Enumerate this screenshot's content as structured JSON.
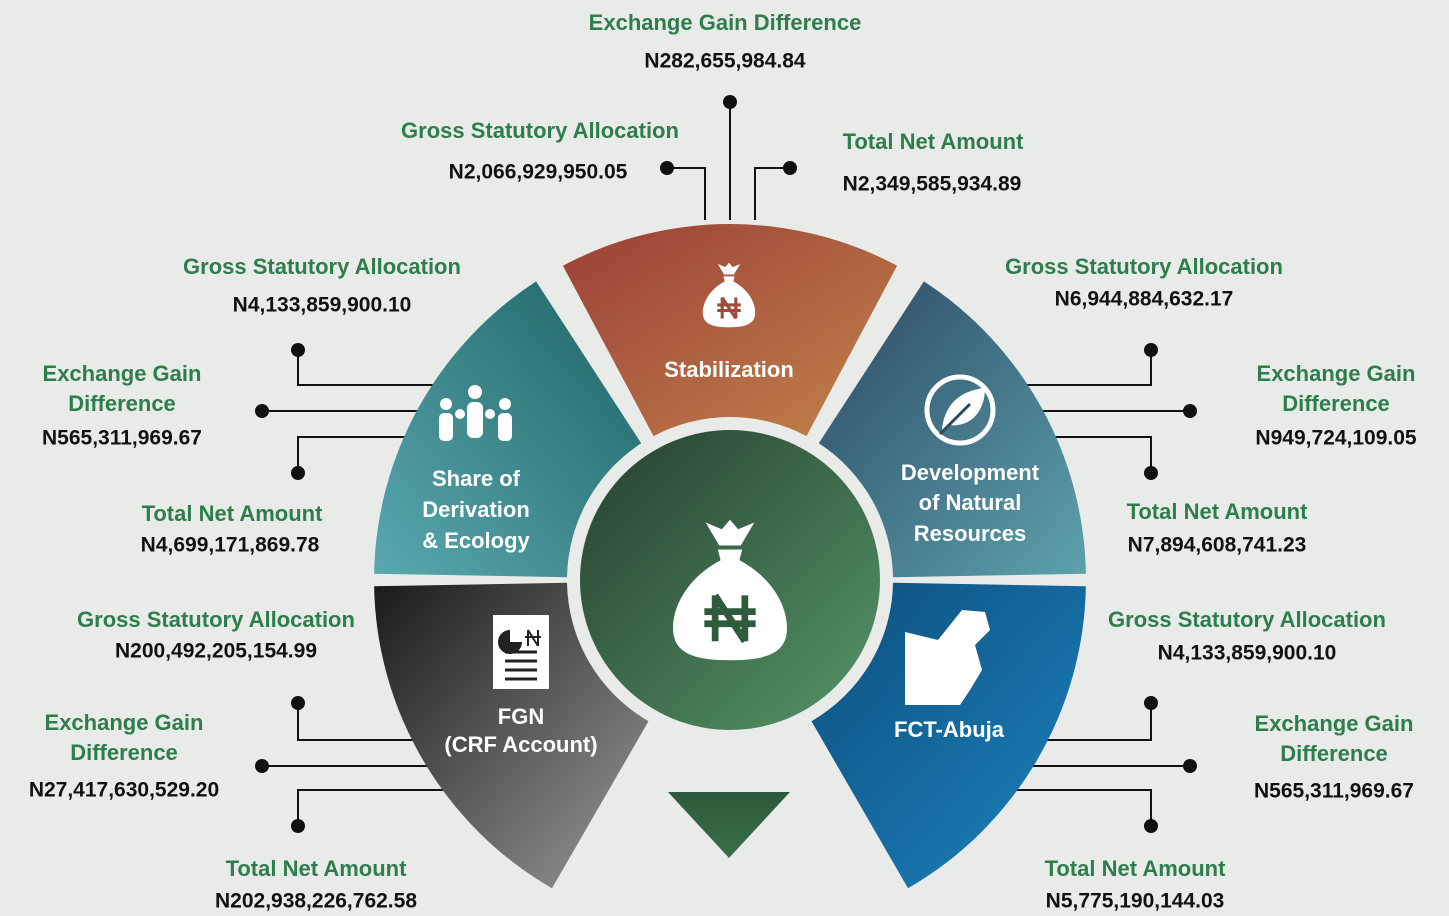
{
  "segments": [
    {
      "name": "Stabilization",
      "items": [
        {
          "label": "Exchange Gain Difference",
          "value": "N282,655,984.84"
        },
        {
          "label": "Gross Statutory Allocation",
          "value": "N2,066,929,950.05"
        },
        {
          "label": "Total Net Amount",
          "value": "N2,349,585,934.89"
        }
      ]
    },
    {
      "name": [
        "Share of",
        "Derivation",
        "& Ecology"
      ],
      "items": [
        {
          "label": "Gross Statutory Allocation",
          "value": "N4,133,859,900.10"
        },
        {
          "label": [
            "Exchange Gain",
            "Difference"
          ],
          "value": "N565,311,969.67"
        },
        {
          "label": "Total Net Amount",
          "value": "N4,699,171,869.78"
        }
      ]
    },
    {
      "name": [
        "Development",
        "of Natural",
        "Resources"
      ],
      "items": [
        {
          "label": "Gross Statutory Allocation",
          "value": "N6,944,884,632.17"
        },
        {
          "label": [
            "Exchange Gain",
            "Difference"
          ],
          "value": "N949,724,109.05"
        },
        {
          "label": "Total Net Amount",
          "value": "N7,894,608,741.23"
        }
      ]
    },
    {
      "name": [
        "FGN",
        "(CRF Account)"
      ],
      "items": [
        {
          "label": "Gross Statutory Allocation",
          "value": "N200,492,205,154.99"
        },
        {
          "label": [
            "Exchange Gain",
            "Difference"
          ],
          "value": "N27,417,630,529.20"
        },
        {
          "label": "Total Net Amount",
          "value": "N202,938,226,762.58"
        }
      ]
    },
    {
      "name": "FCT-Abuja",
      "items": [
        {
          "label": "Gross Statutory Allocation",
          "value": "N4,133,859,900.10"
        },
        {
          "label": [
            "Exchange Gain",
            "Difference"
          ],
          "value": "N565,311,969.67"
        },
        {
          "label": "Total Net Amount",
          "value": "N5,775,190,144.03"
        }
      ]
    }
  ]
}
